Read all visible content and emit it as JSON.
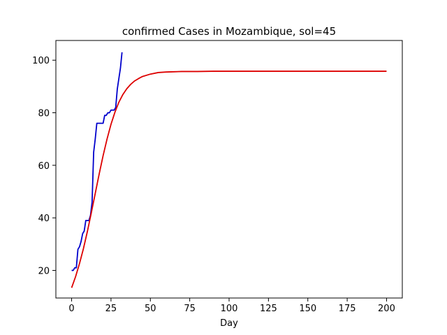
{
  "chart_data": {
    "type": "line",
    "title": "confirmed Cases in Mozambique, sol=45",
    "xlabel": "Day",
    "ylabel": "",
    "xlim": [
      -10,
      210
    ],
    "ylim": [
      9.5,
      107.5
    ],
    "xticks": [
      0,
      25,
      50,
      75,
      100,
      125,
      150,
      175,
      200
    ],
    "yticks": [
      20,
      40,
      60,
      80,
      100
    ],
    "grid": false,
    "series": [
      {
        "color": "#0000cc",
        "x": [
          0,
          1,
          2,
          3,
          4,
          5,
          6,
          7,
          8,
          9,
          10,
          11,
          12,
          13,
          14,
          15,
          16,
          17,
          18,
          19,
          20,
          21,
          22,
          23,
          24,
          25,
          26,
          27,
          28,
          29,
          30,
          31,
          32
        ],
        "y": [
          20,
          20,
          21,
          21,
          28,
          29,
          31,
          34,
          35,
          39,
          39,
          39,
          41,
          46,
          65,
          70,
          76,
          76,
          76,
          76,
          76,
          79,
          79,
          80,
          80,
          81,
          81,
          81,
          82,
          89,
          93,
          97,
          103
        ]
      },
      {
        "color": "#dd0000",
        "x": [
          0,
          2.5,
          5,
          7.5,
          10,
          12.5,
          15,
          17.5,
          20,
          22.5,
          25,
          27.5,
          30,
          32.5,
          35,
          37.5,
          40,
          42.5,
          45,
          50,
          55,
          60,
          65,
          70,
          80,
          90,
          100,
          125,
          150,
          175,
          200
        ],
        "y": [
          13.4,
          17.6,
          22.6,
          28.3,
          34.8,
          41.9,
          49.3,
          56.7,
          63.7,
          70.0,
          75.6,
          80.2,
          84.0,
          86.9,
          89.1,
          90.8,
          92.1,
          93.0,
          93.8,
          94.7,
          95.3,
          95.5,
          95.6,
          95.7,
          95.7,
          95.8,
          95.8,
          95.8,
          95.8,
          95.8,
          95.8
        ]
      }
    ]
  }
}
